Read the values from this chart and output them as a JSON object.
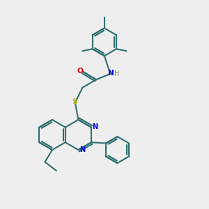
{
  "bg_color": "#eeeeee",
  "bond_color": "#2d6e6e",
  "N_color": "#0000ee",
  "O_color": "#dd0000",
  "S_color": "#bbbb00",
  "H_color": "#888888",
  "line_width": 1.5,
  "figsize": [
    3.0,
    3.0
  ],
  "dpi": 100,
  "xlim": [
    0,
    10
  ],
  "ylim": [
    0,
    10
  ]
}
